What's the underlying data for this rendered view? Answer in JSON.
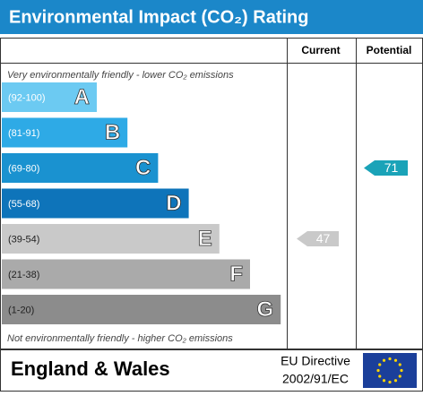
{
  "chart_data": {
    "type": "rating",
    "title": "Environmental Impact (CO₂) Rating",
    "columns": [
      "Current",
      "Potential"
    ],
    "top_note": "Very environmentally friendly - lower CO₂ emissions",
    "bottom_note": "Not environmentally friendly - higher CO₂ emissions",
    "bands": [
      {
        "range": "(92-100)",
        "letter": "A",
        "color": "#6ccaf2"
      },
      {
        "range": "(81-91)",
        "letter": "B",
        "color": "#2eaae6"
      },
      {
        "range": "(69-80)",
        "letter": "C",
        "color": "#1a92d0"
      },
      {
        "range": "(55-68)",
        "letter": "D",
        "color": "#0e74ba"
      },
      {
        "range": "(39-54)",
        "letter": "E",
        "color": "#c9c9c9"
      },
      {
        "range": "(21-38)",
        "letter": "F",
        "color": "#aaaaaa"
      },
      {
        "range": "(1-20)",
        "letter": "G",
        "color": "#8c8c8c"
      }
    ],
    "current": {
      "value": 47,
      "color": "#c9c9c9"
    },
    "potential": {
      "value": 71,
      "color": "#1aa3b8"
    },
    "footer": {
      "region": "England & Wales",
      "directive_line1": "EU Directive",
      "directive_line2": "2002/91/EC"
    }
  }
}
